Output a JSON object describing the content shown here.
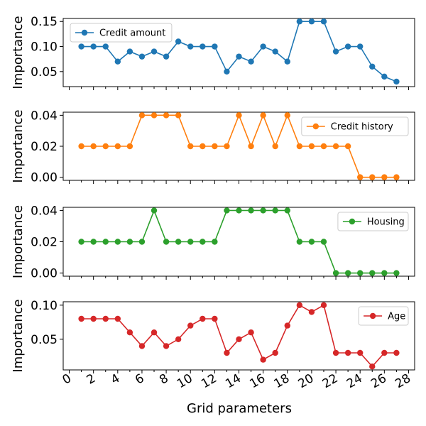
{
  "chart_data": {
    "type": "line",
    "xlabel": "Grid parameters",
    "x_ticks": [
      0,
      2,
      4,
      6,
      8,
      10,
      12,
      14,
      16,
      18,
      20,
      22,
      24,
      26,
      28
    ],
    "x": [
      1,
      2,
      3,
      4,
      5,
      6,
      7,
      8,
      9,
      10,
      11,
      12,
      13,
      14,
      15,
      16,
      17,
      18,
      19,
      20,
      21,
      22,
      23,
      24,
      25,
      26,
      27
    ],
    "xlim": [
      -0.5,
      28.5
    ],
    "panels": [
      {
        "name": "Credit amount",
        "color": "#1f77b4",
        "ylabel": "Importance",
        "ylim": [
          0.02,
          0.156
        ],
        "yticks": [
          0.05,
          0.1,
          0.15
        ],
        "ytick_labels": [
          "0.05",
          "0.10",
          "0.15"
        ],
        "legend_position": "top-left",
        "values": [
          0.1,
          0.1,
          0.1,
          0.07,
          0.09,
          0.08,
          0.09,
          0.08,
          0.11,
          0.1,
          0.1,
          0.1,
          0.05,
          0.08,
          0.07,
          0.1,
          0.09,
          0.07,
          0.15,
          0.15,
          0.15,
          0.09,
          0.1,
          0.1,
          0.06,
          0.04,
          0.03
        ]
      },
      {
        "name": "Credit history",
        "color": "#ff7f0e",
        "ylabel": "Importance",
        "ylim": [
          -0.002,
          0.042
        ],
        "yticks": [
          0.0,
          0.02,
          0.04
        ],
        "ytick_labels": [
          "0.00",
          "0.02",
          "0.04"
        ],
        "legend_position": "top-right",
        "values": [
          0.02,
          0.02,
          0.02,
          0.02,
          0.02,
          0.04,
          0.04,
          0.04,
          0.04,
          0.02,
          0.02,
          0.02,
          0.02,
          0.04,
          0.02,
          0.04,
          0.02,
          0.04,
          0.02,
          0.02,
          0.02,
          0.02,
          0.02,
          0.0,
          0.0,
          0.0,
          0.0
        ]
      },
      {
        "name": "Housing",
        "color": "#2ca02c",
        "ylabel": "Importance",
        "ylim": [
          -0.002,
          0.042
        ],
        "yticks": [
          0.0,
          0.02,
          0.04
        ],
        "ytick_labels": [
          "0.00",
          "0.02",
          "0.04"
        ],
        "legend_position": "top-right",
        "values": [
          0.02,
          0.02,
          0.02,
          0.02,
          0.02,
          0.02,
          0.04,
          0.02,
          0.02,
          0.02,
          0.02,
          0.02,
          0.04,
          0.04,
          0.04,
          0.04,
          0.04,
          0.04,
          0.02,
          0.02,
          0.02,
          0.0,
          0.0,
          0.0,
          0.0,
          0.0,
          0.0
        ]
      },
      {
        "name": "Age",
        "color": "#d62728",
        "ylabel": "Importance",
        "ylim": [
          0.005,
          0.105
        ],
        "yticks": [
          0.05,
          0.1
        ],
        "ytick_labels": [
          "0.05",
          "0.10"
        ],
        "legend_position": "top-right",
        "values": [
          0.08,
          0.08,
          0.08,
          0.08,
          0.06,
          0.04,
          0.06,
          0.04,
          0.05,
          0.07,
          0.08,
          0.08,
          0.03,
          0.05,
          0.06,
          0.02,
          0.03,
          0.07,
          0.1,
          0.09,
          0.1,
          0.03,
          0.03,
          0.03,
          0.01,
          0.03,
          0.03
        ]
      }
    ]
  }
}
